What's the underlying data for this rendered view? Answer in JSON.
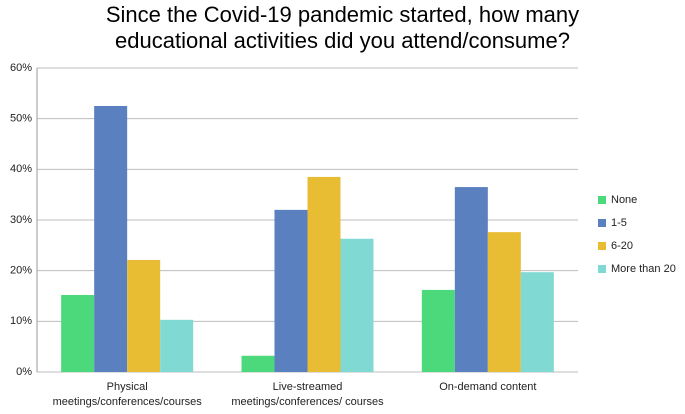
{
  "chart_data": {
    "type": "bar",
    "title": "Since the Covid-19 pandemic started, how many educational activities did you attend/consume?",
    "categories": [
      "Physical meetings/conferences/courses",
      "Live-streamed meetings/conferences/ courses",
      "On-demand content"
    ],
    "series": [
      {
        "name": "None",
        "color": "#4cd97b",
        "values": [
          15.2,
          3.2,
          16.2
        ]
      },
      {
        "name": "1-5",
        "color": "#5b80bf",
        "values": [
          52.5,
          32,
          36.5
        ]
      },
      {
        "name": "6-20",
        "color": "#e8bd33",
        "values": [
          22.1,
          38.5,
          27.6
        ]
      },
      {
        "name": "More than 20",
        "color": "#80d9d3",
        "values": [
          10.3,
          26.3,
          19.7
        ]
      }
    ],
    "ylim": [
      0,
      60
    ],
    "yticks": [
      {
        "value": 0,
        "label": "0%"
      },
      {
        "value": 10,
        "label": "10%"
      },
      {
        "value": 20,
        "label": "20%"
      },
      {
        "value": 30,
        "label": "30%"
      },
      {
        "value": 40,
        "label": "40%"
      },
      {
        "value": 50,
        "label": "50%"
      },
      {
        "value": 60,
        "label": "60%"
      }
    ],
    "grid": true,
    "legend": "right"
  }
}
